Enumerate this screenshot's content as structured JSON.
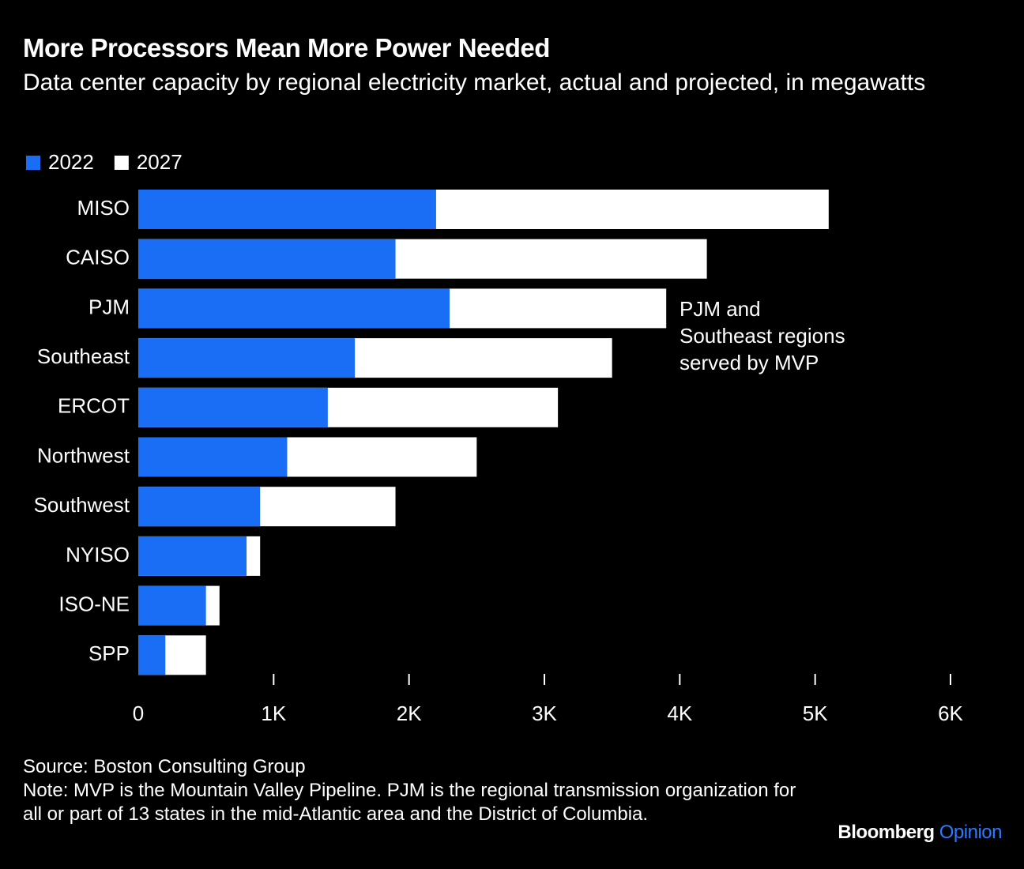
{
  "chart_data": {
    "type": "bar",
    "orientation": "horizontal",
    "title": "More Processors Mean More Power Needed",
    "subtitle": "Data center capacity by regional electricity market, actual and projected, in megawatts",
    "categories": [
      "MISO",
      "CAISO",
      "PJM",
      "Southeast",
      "ERCOT",
      "Northwest",
      "Southwest",
      "NYISO",
      "ISO-NE",
      "SPP"
    ],
    "series": [
      {
        "name": "2022",
        "color": "#1a6ef5",
        "values": [
          2200,
          1900,
          2300,
          1600,
          1400,
          1100,
          900,
          800,
          500,
          200
        ]
      },
      {
        "name": "2027",
        "color": "#ffffff",
        "values": [
          5100,
          4200,
          3900,
          3500,
          3100,
          2500,
          1900,
          900,
          600,
          500
        ]
      }
    ],
    "xlim": [
      0,
      6000
    ],
    "xticks": [
      0,
      {
        "value": 1000,
        "label": "1K"
      },
      {
        "value": 2000,
        "label": "2K"
      },
      {
        "value": 3000,
        "label": "3K"
      },
      {
        "value": 4000,
        "label": "4K"
      },
      {
        "value": 5000,
        "label": "5K"
      },
      {
        "value": 6000,
        "label": "6K"
      }
    ],
    "annotation": [
      "PJM and",
      "Southeast regions",
      "served by MVP"
    ],
    "source": "Source: Boston Consulting Group",
    "note": "Note: MVP is the Mountain Valley Pipeline. PJM is the regional transmission organization for all or part of 13 states in the mid-Atlantic area and the District of Columbia.",
    "logo": [
      "Bloomberg",
      "Opinion"
    ]
  }
}
